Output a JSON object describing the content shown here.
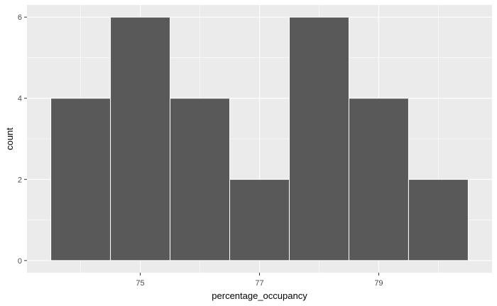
{
  "chart_data": {
    "type": "histogram",
    "xlabel": "percentage_occupancy",
    "ylabel": "count",
    "bin_width": 1,
    "bins": [
      {
        "x_min": 73.5,
        "x_max": 74.5,
        "count": 4
      },
      {
        "x_min": 74.5,
        "x_max": 75.5,
        "count": 6
      },
      {
        "x_min": 75.5,
        "x_max": 76.5,
        "count": 4
      },
      {
        "x_min": 76.5,
        "x_max": 77.5,
        "count": 2
      },
      {
        "x_min": 77.5,
        "x_max": 78.5,
        "count": 6
      },
      {
        "x_min": 78.5,
        "x_max": 79.5,
        "count": 4
      },
      {
        "x_min": 79.5,
        "x_max": 80.5,
        "count": 2
      }
    ],
    "x_ticks": [
      75,
      77,
      79
    ],
    "y_ticks": [
      0,
      2,
      4,
      6
    ],
    "xlim": [
      73.1,
      80.9
    ],
    "ylim": [
      -0.3,
      6.3
    ],
    "grid": true,
    "colors": {
      "panel_background": "#ebebeb",
      "grid_major": "#ffffff",
      "bar_fill": "#595959",
      "bar_outline": "#ffffff"
    }
  }
}
